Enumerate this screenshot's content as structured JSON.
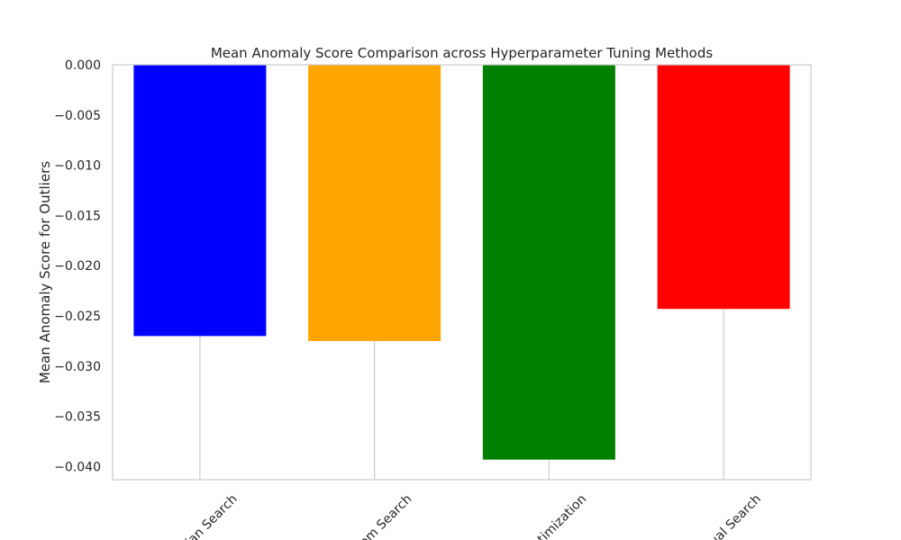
{
  "chart_data": {
    "type": "bar",
    "title": "Mean Anomaly Score Comparison across Hyperparameter Tuning Methods",
    "xlabel": "",
    "ylabel": "Mean Anomaly Score for Outliers",
    "categories": [
      "Grid Search",
      "Random Search",
      "Bayesian Optimization",
      "Manual Search"
    ],
    "visible_tick_labels": [
      "ian Search",
      "om Search",
      "ptimization",
      "ual Search"
    ],
    "values": [
      -0.027,
      -0.0275,
      -0.0393,
      -0.0243
    ],
    "bar_colors": [
      "#0000ff",
      "#ffa500",
      "#008000",
      "#ff0000"
    ],
    "ylim": [
      -0.0413,
      0.0
    ],
    "yticks": [
      0.0,
      -0.005,
      -0.01,
      -0.015,
      -0.02,
      -0.025,
      -0.03,
      -0.035,
      -0.04
    ],
    "ytick_labels": [
      "0.000",
      "−0.005",
      "−0.010",
      "−0.015",
      "−0.020",
      "−0.025",
      "−0.030",
      "−0.035",
      "−0.040"
    ],
    "grid": "x-only",
    "xtick_rotation_deg": 45,
    "legend": "none"
  }
}
